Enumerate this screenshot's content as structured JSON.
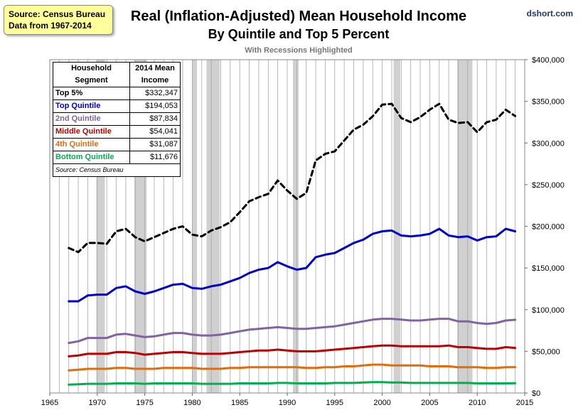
{
  "source_box": {
    "line1": "Source: Census Bureau",
    "line2": "Data from 1967-2014"
  },
  "credit": "dshort.com",
  "chart_data": {
    "type": "line",
    "title": "Real (Inflation-Adjusted) Mean Household Income",
    "title_line2": "By Quintile and Top 5 Percent",
    "subtitle": "With Recessions Highlighted",
    "xlim": [
      1965,
      2015
    ],
    "ylim": [
      0,
      400000
    ],
    "x_ticks": [
      1965,
      1970,
      1975,
      1980,
      1985,
      1990,
      1995,
      2000,
      2005,
      2010,
      2015
    ],
    "y_ticks": [
      0,
      50000,
      100000,
      150000,
      200000,
      250000,
      300000,
      350000,
      400000
    ],
    "y_tick_labels": [
      "$0",
      "$50,000",
      "$100,000",
      "$150,000",
      "$200,000",
      "$250,000",
      "$300,000",
      "$350,000",
      "$400,000"
    ],
    "y_axis_side": "right",
    "grid": "vertical",
    "recessions": [
      [
        1969.9,
        1970.8
      ],
      [
        1973.9,
        1975.2
      ],
      [
        1980.0,
        1980.5
      ],
      [
        1981.5,
        1982.9
      ],
      [
        1990.6,
        1991.2
      ],
      [
        2001.2,
        2001.9
      ],
      [
        2007.9,
        2009.5
      ]
    ],
    "x": [
      1967,
      1968,
      1969,
      1970,
      1971,
      1972,
      1973,
      1974,
      1975,
      1976,
      1977,
      1978,
      1979,
      1980,
      1981,
      1982,
      1983,
      1984,
      1985,
      1986,
      1987,
      1988,
      1989,
      1990,
      1991,
      1992,
      1993,
      1994,
      1995,
      1996,
      1997,
      1998,
      1999,
      2000,
      2001,
      2002,
      2003,
      2004,
      2005,
      2006,
      2007,
      2008,
      2009,
      2010,
      2011,
      2012,
      2013,
      2014
    ],
    "series": [
      {
        "name": "Top 5%",
        "color": "#000000",
        "dashed": true,
        "values": [
          174000,
          169000,
          180000,
          180000,
          179000,
          194000,
          197000,
          187000,
          182000,
          187000,
          192000,
          197000,
          200000,
          190000,
          188000,
          195000,
          199000,
          205000,
          217000,
          230000,
          235000,
          239000,
          255000,
          243000,
          233000,
          240000,
          279000,
          287000,
          290000,
          303000,
          316000,
          322000,
          332000,
          346000,
          347000,
          330000,
          325000,
          331000,
          340000,
          347000,
          328000,
          324000,
          325000,
          313000,
          325000,
          328000,
          340000,
          332347
        ]
      },
      {
        "name": "Top Quintile",
        "color": "#0000cc",
        "values": [
          110000,
          110000,
          117000,
          118000,
          118000,
          126000,
          128000,
          122000,
          119000,
          122000,
          126000,
          130000,
          131000,
          126000,
          125000,
          128000,
          130000,
          134000,
          138000,
          144000,
          148000,
          150000,
          157000,
          152000,
          148000,
          150000,
          163000,
          166000,
          168000,
          174000,
          180000,
          184000,
          191000,
          194000,
          195000,
          189000,
          188000,
          189000,
          191000,
          197000,
          189000,
          187000,
          188000,
          183000,
          187000,
          188000,
          197000,
          194053
        ]
      },
      {
        "name": "2nd Quintile",
        "color": "#8064a2",
        "values": [
          60000,
          62000,
          66000,
          66000,
          66000,
          70000,
          71000,
          69000,
          67000,
          68000,
          70000,
          72000,
          72000,
          70000,
          69000,
          69000,
          70000,
          72000,
          74000,
          76000,
          77000,
          78000,
          79000,
          78000,
          77000,
          77000,
          78000,
          79000,
          80000,
          82000,
          84000,
          86000,
          88000,
          89000,
          89000,
          88000,
          87000,
          87000,
          88000,
          89000,
          89000,
          86000,
          86000,
          84000,
          83000,
          84000,
          87000,
          87834
        ]
      },
      {
        "name": "Middle Quintile",
        "color": "#c00000",
        "values": [
          44000,
          45000,
          47000,
          47000,
          47000,
          49000,
          49000,
          48000,
          46000,
          47000,
          48000,
          49000,
          49000,
          48000,
          47000,
          47000,
          47000,
          48000,
          49000,
          50000,
          51000,
          51000,
          52000,
          51000,
          50000,
          50000,
          50000,
          51000,
          52000,
          53000,
          54000,
          55000,
          56000,
          57000,
          57000,
          56000,
          56000,
          56000,
          56000,
          56000,
          57000,
          55000,
          55000,
          54000,
          53000,
          53000,
          55000,
          54041
        ]
      },
      {
        "name": "4th Quintile",
        "color": "#e36c09",
        "values": [
          27000,
          28000,
          29000,
          29000,
          29000,
          30000,
          30000,
          29000,
          29000,
          29000,
          30000,
          30000,
          30000,
          30000,
          29000,
          29000,
          29000,
          30000,
          30000,
          31000,
          31000,
          31000,
          31000,
          31000,
          31000,
          30000,
          30000,
          31000,
          31000,
          32000,
          32000,
          33000,
          34000,
          34000,
          33000,
          33000,
          33000,
          33000,
          32000,
          32000,
          32000,
          31000,
          31000,
          31000,
          30000,
          30000,
          31000,
          31087
        ]
      },
      {
        "name": "Bottom Quintile",
        "color": "#00b050",
        "values": [
          10000,
          10500,
          11000,
          11000,
          11000,
          11500,
          11500,
          11500,
          11000,
          11500,
          11500,
          11500,
          11500,
          11500,
          11000,
          11000,
          11000,
          11000,
          11500,
          11500,
          11500,
          11500,
          12000,
          12000,
          11500,
          11500,
          11500,
          11500,
          12000,
          12000,
          12000,
          12500,
          13000,
          13000,
          12500,
          12500,
          12000,
          12000,
          12000,
          12000,
          12000,
          12000,
          12000,
          11500,
          11500,
          11500,
          11500,
          11676
        ]
      }
    ]
  },
  "table": {
    "header_col1": [
      "Household",
      "Segment"
    ],
    "header_col2": [
      "2014 Mean",
      "Income"
    ],
    "rows": [
      {
        "label": "Top 5%",
        "value": "$332,347",
        "color": "#000000"
      },
      {
        "label": "Top Quintile",
        "value": "$194,053",
        "color": "#0000cc"
      },
      {
        "label": "2nd Quintile",
        "value": "$87,834",
        "color": "#8064a2"
      },
      {
        "label": "Middle Quintile",
        "value": "$54,041",
        "color": "#c00000"
      },
      {
        "label": "4th Quintile",
        "value": "$31,087",
        "color": "#e36c09"
      },
      {
        "label": "Bottom Quintile",
        "value": "$11,676",
        "color": "#00b050"
      }
    ],
    "note": "Source: Census Bureau"
  }
}
